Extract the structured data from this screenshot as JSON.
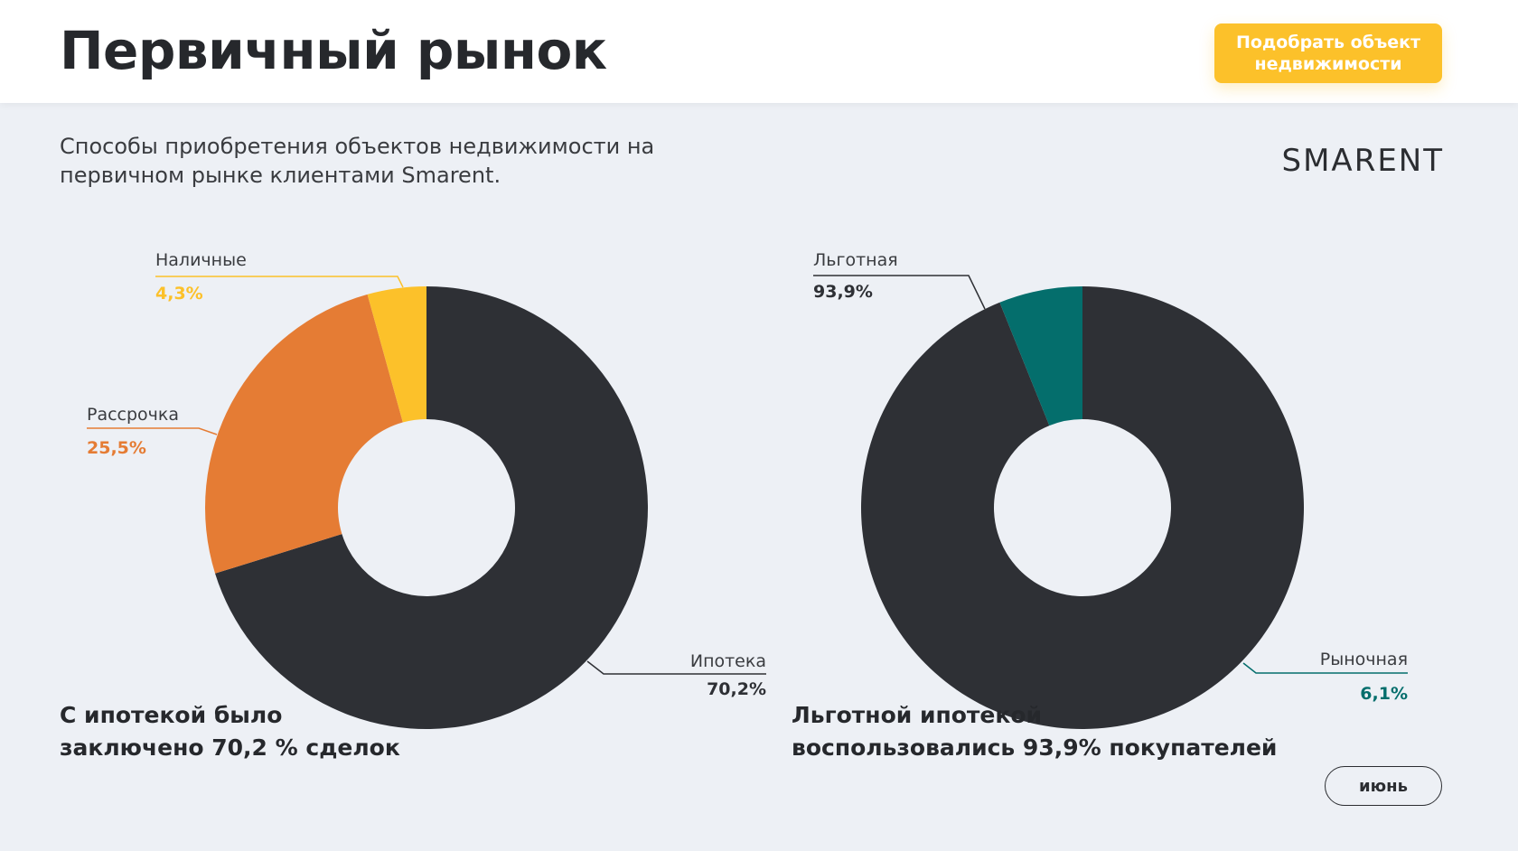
{
  "header": {
    "title": "Первичный рынок",
    "cta_label": "Подобрать объект недвижимости"
  },
  "main": {
    "subtitle": "Способы приобретения объектов недвижимости на первичном рынке клиентами Smarent.",
    "brand": "SMARENT",
    "summary_left": "С ипотекой было\nзаключено 70,2 % сделок",
    "summary_right": "Льготной ипотекой\nвоспользовались 93,9% покупателей",
    "month_label": "июнь"
  },
  "chart_data": [
    {
      "type": "pie",
      "title": "",
      "slices": [
        {
          "name": "Ипотека",
          "value": 70.2,
          "label": "70,2%",
          "color": "#2e3035"
        },
        {
          "name": "Рассрочка",
          "value": 25.5,
          "label": "25,5%",
          "color": "#e57c34"
        },
        {
          "name": "Наличные",
          "value": 4.3,
          "label": "4,3%",
          "color": "#fcc12a"
        }
      ],
      "donut": true
    },
    {
      "type": "pie",
      "title": "",
      "slices": [
        {
          "name": "Льготная",
          "value": 93.9,
          "label": "93,9%",
          "color": "#2e3035"
        },
        {
          "name": "Рыночная",
          "value": 6.1,
          "label": "6,1%",
          "color": "#046e6c"
        }
      ],
      "donut": true
    }
  ]
}
